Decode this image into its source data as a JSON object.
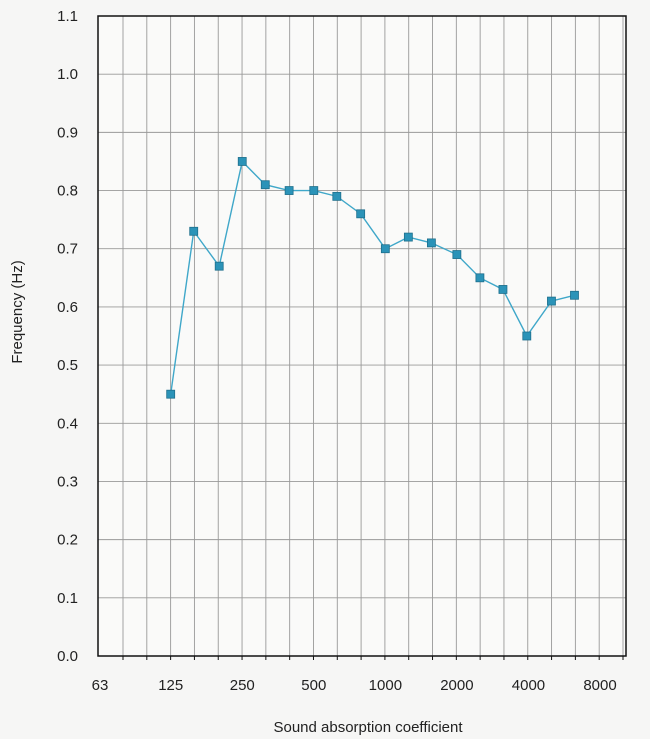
{
  "chart_data": {
    "type": "line",
    "title": "",
    "xlabel": "Sound absorption coefficient",
    "ylabel": "Frequency (Hz)",
    "x_scale": "log2",
    "xlim": [
      63,
      8000
    ],
    "ylim": [
      0,
      1.1
    ],
    "grid": true,
    "legend": "none",
    "x_tick_labels": [
      "63",
      "125",
      "250",
      "500",
      "1000",
      "2000",
      "4000",
      "8000"
    ],
    "x_tick_values": [
      63,
      125,
      250,
      500,
      1000,
      2000,
      4000,
      8000
    ],
    "y_tick_labels": [
      "0.0",
      "0.1",
      "0.2",
      "0.3",
      "0.4",
      "0.5",
      "0.6",
      "0.7",
      "0.8",
      "0.9",
      "1.0",
      "1.1"
    ],
    "y_tick_values": [
      0,
      0.1,
      0.2,
      0.3,
      0.4,
      0.5,
      0.6,
      0.7,
      0.8,
      0.9,
      1.0,
      1.1
    ],
    "series": [
      {
        "x": [
          100,
          125,
          160,
          200,
          250,
          315,
          400,
          500,
          630,
          800,
          1000,
          1250,
          1600,
          2000,
          2500,
          3150,
          4000,
          5000
        ],
        "y": [
          0.45,
          0.73,
          0.67,
          0.85,
          0.81,
          0.8,
          0.8,
          0.79,
          0.76,
          0.7,
          0.72,
          0.71,
          0.69,
          0.65,
          0.63,
          0.55,
          0.61,
          0.62
        ]
      }
    ],
    "colors": {
      "line": "#3fa7c9",
      "marker": "#2b93b8",
      "marker_edge": "#1e6f8c",
      "grid": "#999999",
      "axis": "#111111"
    }
  }
}
